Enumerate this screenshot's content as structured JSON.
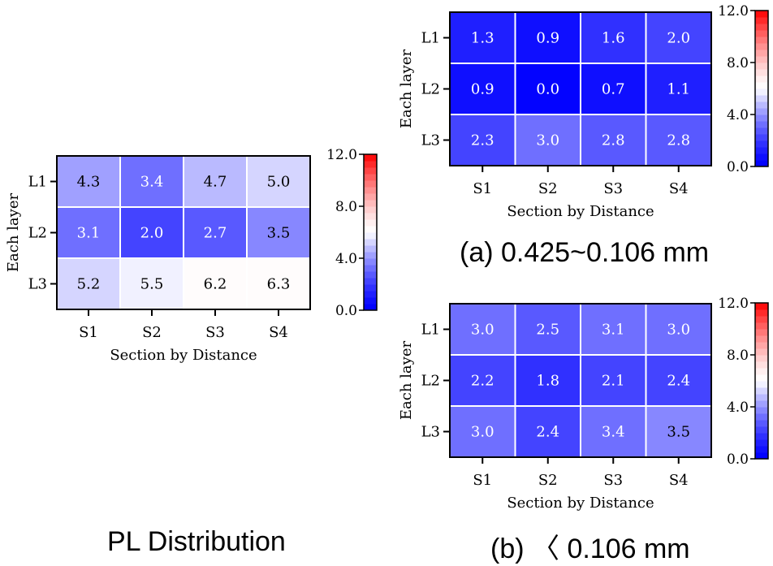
{
  "colormap": {
    "min": 0.0,
    "max": 12.0,
    "steps": 24,
    "low_color": "#0000ff",
    "mid_color": "#ffffff",
    "high_color": "#ff0000",
    "ticks": [
      "0.0",
      "4.0",
      "8.0",
      "12.0"
    ]
  },
  "captions": {
    "pl": "PL Distribution",
    "a": "(a) 0.425~0.106 mm",
    "b": "(b) 〈 0.106 mm"
  },
  "chart_data": [
    {
      "type": "heatmap",
      "id": "pl",
      "title": "PL Distribution",
      "xlabel": "Section by Distance",
      "ylabel": "Each layer",
      "x_categories": [
        "S1",
        "S2",
        "S3",
        "S4"
      ],
      "y_categories": [
        "L1",
        "L2",
        "L3"
      ],
      "values": [
        [
          4.3,
          3.4,
          4.7,
          5.0
        ],
        [
          3.1,
          2.0,
          2.7,
          3.5
        ],
        [
          5.2,
          5.5,
          6.2,
          6.3
        ]
      ],
      "labels": [
        [
          "4.3",
          "3.4",
          "4.7",
          "5.0"
        ],
        [
          "3.1",
          "2.0",
          "2.7",
          "3.5"
        ],
        [
          "5.2",
          "5.5",
          "6.2",
          "6.3"
        ]
      ],
      "colorbar": {
        "min": 0.0,
        "max": 12.0,
        "ticks": [
          "0.0",
          "4.0",
          "8.0",
          "12.0"
        ]
      }
    },
    {
      "type": "heatmap",
      "id": "a",
      "title": "(a) 0.425~0.106 mm",
      "xlabel": "Section by Distance",
      "ylabel": "Each layer",
      "x_categories": [
        "S1",
        "S2",
        "S3",
        "S4"
      ],
      "y_categories": [
        "L1",
        "L2",
        "L3"
      ],
      "values": [
        [
          1.3,
          0.9,
          1.6,
          2.0
        ],
        [
          0.9,
          0.0,
          0.7,
          1.1
        ],
        [
          2.3,
          3.0,
          2.8,
          2.8
        ]
      ],
      "labels": [
        [
          "1.3",
          "0.9",
          "1.6",
          "2.0"
        ],
        [
          "0.9",
          "0.0",
          "0.7",
          "1.1"
        ],
        [
          "2.3",
          "3.0",
          "2.8",
          "2.8"
        ]
      ],
      "colorbar": {
        "min": 0.0,
        "max": 12.0,
        "ticks": [
          "0.0",
          "4.0",
          "8.0",
          "12.0"
        ]
      }
    },
    {
      "type": "heatmap",
      "id": "b",
      "title": "(b) 〈 0.106 mm",
      "xlabel": "Section by Distance",
      "ylabel": "Each layer",
      "x_categories": [
        "S1",
        "S2",
        "S3",
        "S4"
      ],
      "y_categories": [
        "L1",
        "L2",
        "L3"
      ],
      "values": [
        [
          3.0,
          2.5,
          3.1,
          3.0
        ],
        [
          2.2,
          1.8,
          2.1,
          2.4
        ],
        [
          3.0,
          2.4,
          3.4,
          3.5
        ]
      ],
      "labels": [
        [
          "3.0",
          "2.5",
          "3.1",
          "3.0"
        ],
        [
          "2.2",
          "1.8",
          "2.1",
          "2.4"
        ],
        [
          "3.0",
          "2.4",
          "3.4",
          "3.5"
        ]
      ],
      "colorbar": {
        "min": 0.0,
        "max": 12.0,
        "ticks": [
          "0.0",
          "4.0",
          "8.0",
          "12.0"
        ]
      }
    }
  ]
}
